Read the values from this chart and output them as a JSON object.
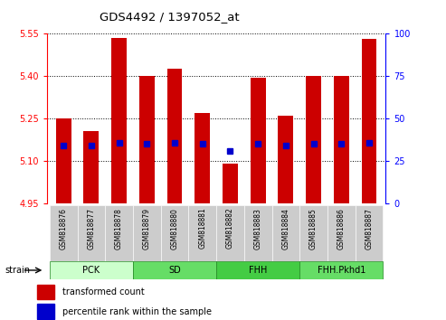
{
  "title": "GDS4492 / 1397052_at",
  "samples": [
    "GSM818876",
    "GSM818877",
    "GSM818878",
    "GSM818879",
    "GSM818880",
    "GSM818881",
    "GSM818882",
    "GSM818883",
    "GSM818884",
    "GSM818885",
    "GSM818886",
    "GSM818887"
  ],
  "red_values": [
    5.25,
    5.205,
    5.535,
    5.4,
    5.425,
    5.27,
    5.09,
    5.395,
    5.26,
    5.4,
    5.4,
    5.53
  ],
  "blue_values": [
    5.155,
    5.155,
    5.165,
    5.16,
    5.165,
    5.16,
    5.135,
    5.16,
    5.155,
    5.16,
    5.16,
    5.165
  ],
  "ymin": 4.95,
  "ymax": 5.55,
  "y2min": 0,
  "y2max": 100,
  "yticks": [
    4.95,
    5.1,
    5.25,
    5.4,
    5.55
  ],
  "y2ticks": [
    0,
    25,
    50,
    75,
    100
  ],
  "groups": [
    {
      "label": "PCK",
      "start": 0,
      "end": 3,
      "color": "#ccffcc"
    },
    {
      "label": "SD",
      "start": 3,
      "end": 6,
      "color": "#66dd66"
    },
    {
      "label": "FHH",
      "start": 6,
      "end": 9,
      "color": "#44cc44"
    },
    {
      "label": "FHH.Pkhd1",
      "start": 9,
      "end": 12,
      "color": "#66dd66"
    }
  ],
  "bar_color": "#cc0000",
  "dot_color": "#0000cc",
  "bar_width": 0.55,
  "bar_bottom": 4.95,
  "tick_bg_color": "#cccccc",
  "group_label": "strain",
  "legend_red": "transformed count",
  "legend_blue": "percentile rank within the sample"
}
